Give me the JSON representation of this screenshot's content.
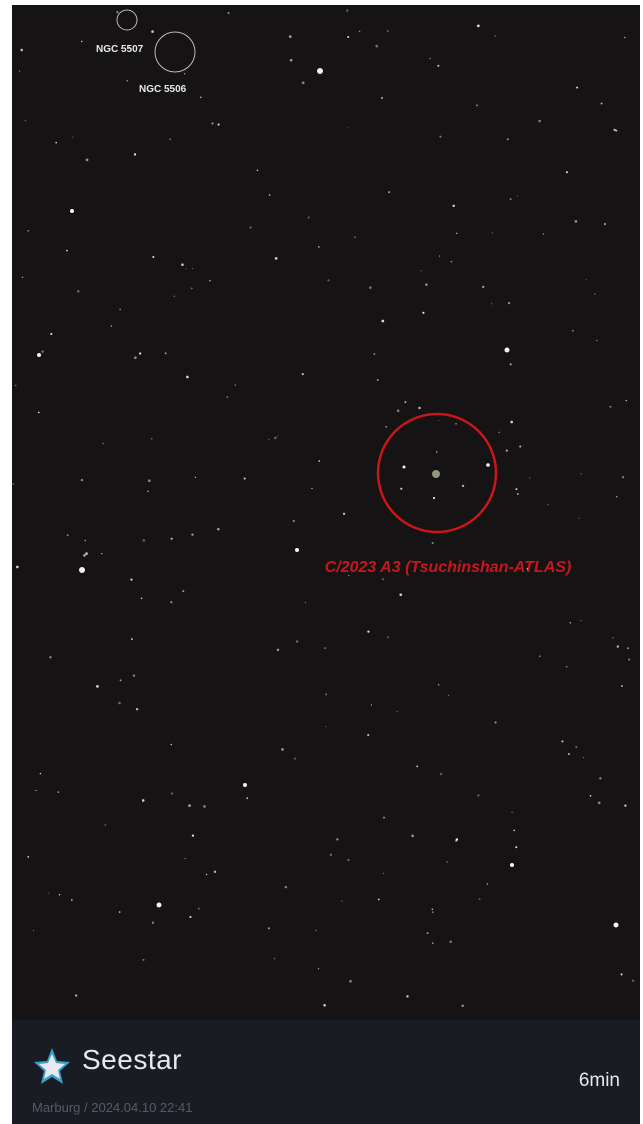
{
  "annotations": {
    "objects": [
      {
        "label": "NGC 5507"
      },
      {
        "label": "NGC 5506"
      }
    ],
    "target": {
      "label": "C/2023 A3 (Tsuchinshan-ATLAS)"
    }
  },
  "footer": {
    "brand": "Seestar",
    "location_time": "Marburg / 2024.04.10 22:41",
    "exposure": "6min"
  }
}
